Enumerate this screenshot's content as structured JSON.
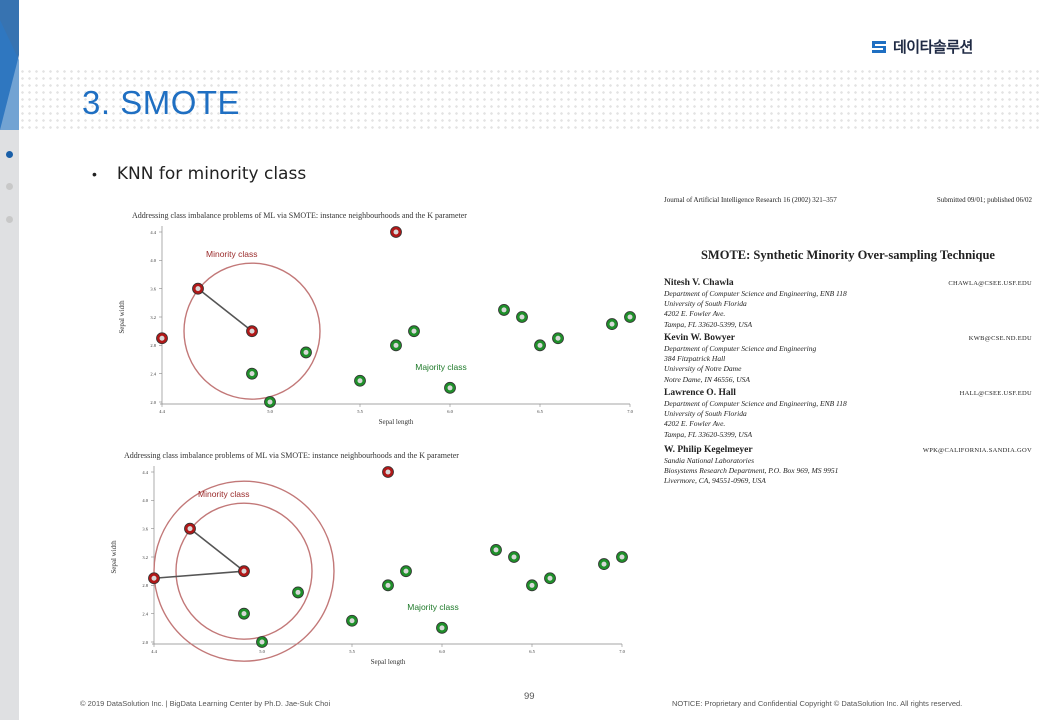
{
  "slide": {
    "title": "3. SMOTE",
    "bullet": "KNN for minority class",
    "logo_text": "데이타솔루션",
    "page_number": "99"
  },
  "footer": {
    "left": "© 2019 DataSolution Inc. | BigData Learning Center by Ph.D. Jae-Suk Choi",
    "right": "NOTICE: Proprietary and Confidential Copyright © DataSolution Inc. All rights reserved."
  },
  "colors": {
    "title_blue": "#1f6fc2",
    "minority_fill": "#b01818",
    "majority_fill": "#1f8f2a",
    "circle_stroke": "#c27878",
    "side_accent": "#1a5fa8"
  },
  "chart_data": [
    {
      "type": "scatter",
      "title": "Addressing class imbalance problems of ML via SMOTE: instance neighbourhoods and the K parameter",
      "xlabel": "Sepal length",
      "ylabel": "Sepal width",
      "xlim": [
        4.4,
        7.0
      ],
      "ylim": [
        2.0,
        4.4
      ],
      "x_ticks": [
        "4.4",
        "5.0",
        "5.5",
        "6.0",
        "6.5",
        "7.0"
      ],
      "y_ticks": [
        "2.0",
        "2.4",
        "2.8",
        "3.2",
        "3.6",
        "4.0",
        "4.4"
      ],
      "annotations": [
        "Minority class",
        "Majority class"
      ],
      "series": [
        {
          "class": "minority",
          "points": [
            [
              4.4,
              2.9
            ],
            [
              4.6,
              3.6
            ],
            [
              4.9,
              3.0
            ],
            [
              5.7,
              4.4
            ]
          ]
        },
        {
          "class": "majority",
          "points": [
            [
              4.9,
              2.4
            ],
            [
              5.0,
              2.0
            ],
            [
              5.2,
              2.7
            ],
            [
              5.5,
              2.3
            ],
            [
              5.7,
              2.8
            ],
            [
              5.8,
              3.0
            ],
            [
              6.0,
              2.2
            ],
            [
              6.3,
              3.3
            ],
            [
              6.4,
              3.2
            ],
            [
              6.5,
              2.8
            ],
            [
              6.6,
              2.9
            ],
            [
              6.9,
              3.1
            ],
            [
              7.0,
              3.2
            ]
          ]
        }
      ],
      "neighbor_links": [
        [
          [
            4.9,
            3.0
          ],
          [
            4.6,
            3.6
          ]
        ]
      ],
      "neighborhood_circles": 1
    },
    {
      "type": "scatter",
      "title": "Addressing class imbalance problems of ML via SMOTE: instance neighbourhoods and the K parameter",
      "xlabel": "Sepal length",
      "ylabel": "Sepal width",
      "xlim": [
        4.4,
        7.0
      ],
      "ylim": [
        2.0,
        4.4
      ],
      "x_ticks": [
        "4.4",
        "5.0",
        "5.5",
        "6.0",
        "6.5",
        "7.0"
      ],
      "y_ticks": [
        "2.0",
        "2.4",
        "2.8",
        "3.2",
        "3.6",
        "4.0",
        "4.4"
      ],
      "annotations": [
        "Minority class",
        "Majority class"
      ],
      "series": [
        {
          "class": "minority",
          "points": [
            [
              4.4,
              2.9
            ],
            [
              4.6,
              3.6
            ],
            [
              4.9,
              3.0
            ],
            [
              5.7,
              4.4
            ]
          ]
        },
        {
          "class": "majority",
          "points": [
            [
              4.9,
              2.4
            ],
            [
              5.0,
              2.0
            ],
            [
              5.2,
              2.7
            ],
            [
              5.5,
              2.3
            ],
            [
              5.7,
              2.8
            ],
            [
              5.8,
              3.0
            ],
            [
              6.0,
              2.2
            ],
            [
              6.3,
              3.3
            ],
            [
              6.4,
              3.2
            ],
            [
              6.5,
              2.8
            ],
            [
              6.6,
              2.9
            ],
            [
              6.9,
              3.1
            ],
            [
              7.0,
              3.2
            ]
          ]
        }
      ],
      "neighbor_links": [
        [
          [
            4.9,
            3.0
          ],
          [
            4.6,
            3.6
          ]
        ],
        [
          [
            4.9,
            3.0
          ],
          [
            4.4,
            2.9
          ]
        ]
      ],
      "neighborhood_circles": 2
    }
  ],
  "paper": {
    "journal": "Journal of Artificial Intelligence Research 16 (2002) 321–357",
    "submitted": "Submitted 09/01; published 06/02",
    "title": "SMOTE: Synthetic Minority Over-sampling Technique",
    "authors": [
      {
        "name": "Nitesh V. Chawla",
        "email": "CHAWLA@CSEE.USF.EDU",
        "lines": [
          "Department of Computer Science and Engineering, ENB 118",
          "University of South Florida",
          "4202 E. Fowler Ave.",
          "Tampa, FL 33620-5399, USA"
        ]
      },
      {
        "name": "Kevin W. Bowyer",
        "email": "KWB@CSE.ND.EDU",
        "lines": [
          "Department of Computer Science and Engineering",
          "384 Fitzpatrick Hall",
          "University of Notre Dame",
          "Notre Dame, IN 46556, USA"
        ]
      },
      {
        "name": "Lawrence O. Hall",
        "email": "HALL@CSEE.USF.EDU",
        "lines": [
          "Department of Computer Science and Engineering, ENB 118",
          "University of South Florida",
          "4202 E. Fowler Ave.",
          "Tampa, FL 33620-5399, USA"
        ]
      },
      {
        "name": "W. Philip Kegelmeyer",
        "email": "WPK@CALIFORNIA.SANDIA.GOV",
        "lines": [
          "Sandia National Laboratories",
          "Biosystems Research Department, P.O. Box 969, MS 9951",
          "Livermore, CA, 94551-0969, USA"
        ]
      }
    ]
  }
}
